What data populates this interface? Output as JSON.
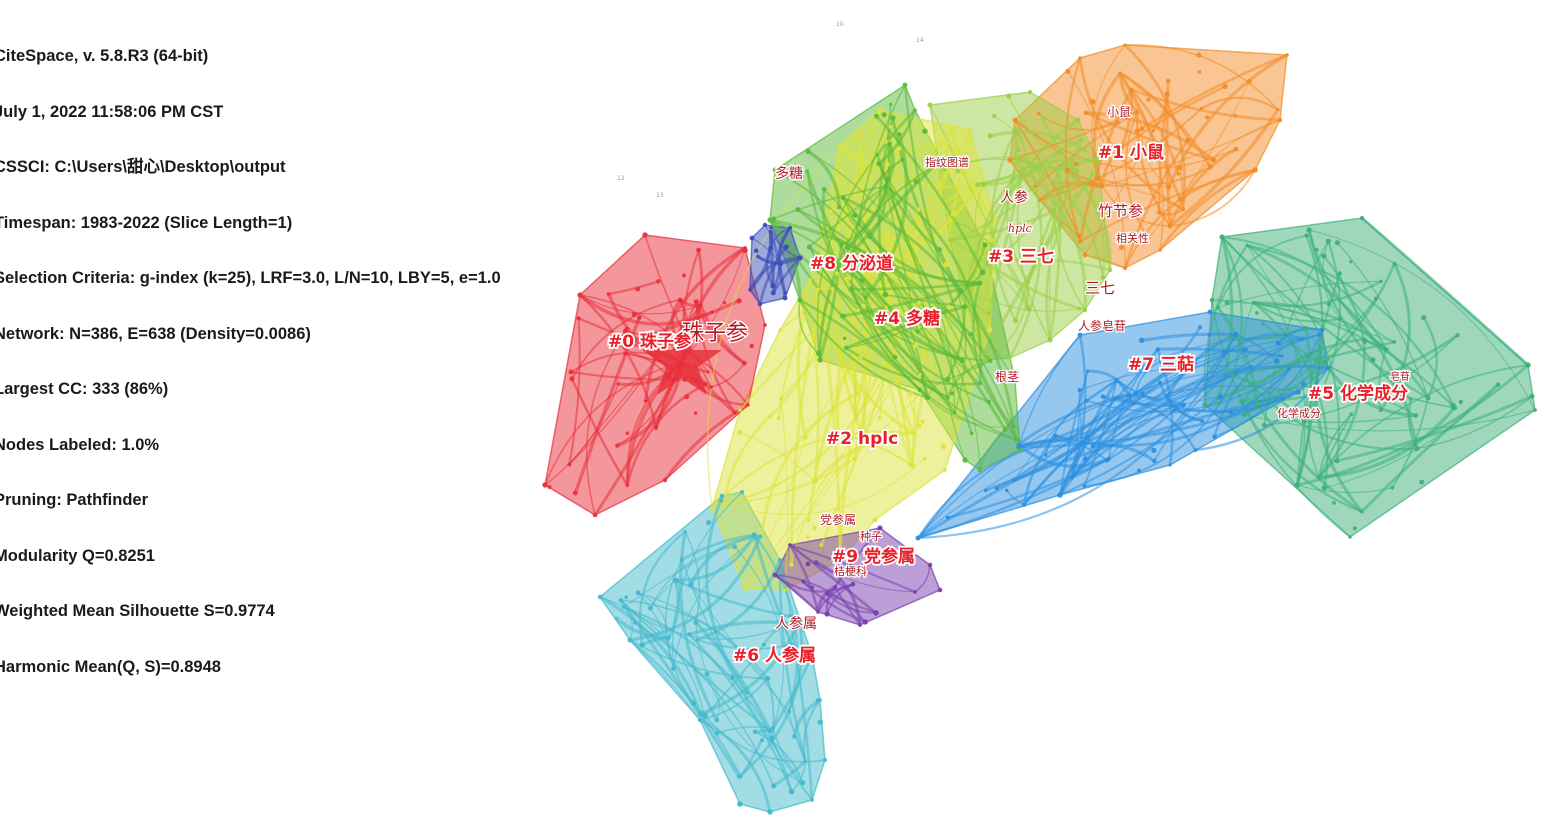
{
  "info": {
    "lines": [
      "CiteSpace, v. 5.8.R3 (64-bit)",
      "July 1, 2022 11:58:06 PM CST",
      "CSSCI: C:\\Users\\甜心\\Desktop\\output",
      "Timespan: 1983-2022 (Slice Length=1)",
      "Selection Criteria: g-index (k=25), LRF=3.0, L/N=10, LBY=5, e=1.0",
      "Network: N=386, E=638 (Density=0.0086)",
      "Largest CC: 333 (86%)",
      "Nodes Labeled: 1.0%",
      "Pruning: Pathfinder",
      "Modularity Q=0.8251",
      "Weighted Mean Silhouette S=0.9774",
      "Harmonic Mean(Q, S)=0.8948"
    ]
  },
  "clusters": [
    {
      "id": "c0",
      "label": "#0 珠子参",
      "color": "#e8303a"
    },
    {
      "id": "c1",
      "label": "#1 小鼠",
      "color": "#f28c28"
    },
    {
      "id": "c2",
      "label": "#2 hplc",
      "color": "#dde33a"
    },
    {
      "id": "c3",
      "label": "#3 三七",
      "color": "#9ccf48"
    },
    {
      "id": "c4",
      "label": "#4 多糖",
      "color": "#5cba3c"
    },
    {
      "id": "c5",
      "label": "#5 化学成分",
      "color": "#3db07a"
    },
    {
      "id": "c6",
      "label": "#6 人参属",
      "color": "#45b9cc"
    },
    {
      "id": "c7",
      "label": "#7 三萜",
      "color": "#2c8fe0"
    },
    {
      "id": "c8",
      "label": "#8 分泌道",
      "color": "#3b4fb8"
    },
    {
      "id": "c9",
      "label": "#9 党参属",
      "color": "#7a3fae"
    }
  ],
  "keywords": [
    {
      "id": "k-zhuzishen",
      "text": "珠子参"
    },
    {
      "id": "k-xiaoshu",
      "text": "小鼠"
    },
    {
      "id": "k-zhujieshen",
      "text": "竹节参"
    },
    {
      "id": "k-xiangguanxing",
      "text": "相关性"
    },
    {
      "id": "k-zhiwentupu",
      "text": "指纹图谱"
    },
    {
      "id": "k-renshen",
      "text": "人参"
    },
    {
      "id": "k-hplc",
      "text": "hplc"
    },
    {
      "id": "k-duotang",
      "text": "多糖"
    },
    {
      "id": "k-sanqi",
      "text": "三七"
    },
    {
      "id": "k-renshenzaogan",
      "text": "人参皂苷"
    },
    {
      "id": "k-genjing",
      "text": "根茎"
    },
    {
      "id": "k-huaxuechengfen",
      "text": "化学成分"
    },
    {
      "id": "k-zaogan",
      "text": "皂苷"
    },
    {
      "id": "k-dangshenshu",
      "text": "党参属"
    },
    {
      "id": "k-zhongzi",
      "text": "种子"
    },
    {
      "id": "k-jiegengke",
      "text": "桔梗科"
    },
    {
      "id": "k-renshenshu",
      "text": "人参属"
    }
  ],
  "marks": [
    "10",
    "14",
    "12",
    "13"
  ]
}
